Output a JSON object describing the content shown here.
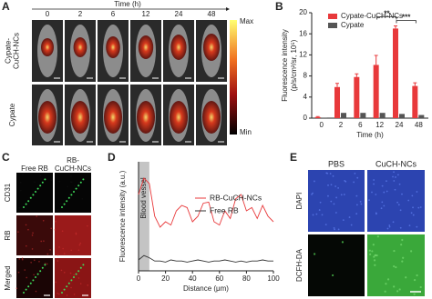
{
  "panel_labels": [
    "A",
    "B",
    "C",
    "D",
    "E"
  ],
  "panel_a": {
    "header": "Time (h)",
    "times": [
      "0",
      "2",
      "6",
      "12",
      "24",
      "48"
    ],
    "rows": [
      [
        "Cypate-",
        "CuCH-NCs"
      ],
      [
        "Cypate"
      ]
    ],
    "colorbar": [
      "Max",
      "Min"
    ]
  },
  "chart_data": [
    {
      "type": "bar",
      "categories": [
        "0",
        "2",
        "6",
        "12",
        "24",
        "48"
      ],
      "x_label": "Time (h)",
      "y_label": [
        "Fluorescence intensity",
        "(p/s/cm²/sr, 10⁵)"
      ],
      "ylim": [
        0,
        20
      ],
      "yticks": [
        0,
        4,
        8,
        12,
        16,
        20
      ],
      "legend": "upper left",
      "series": [
        {
          "name": "Cypate-CuCH-NCs",
          "color": "#e8393b",
          "values": [
            0.2,
            5.9,
            7.8,
            10.1,
            17.0,
            6.1
          ],
          "errors": [
            0.1,
            0.7,
            0.6,
            1.8,
            0.5,
            0.6
          ]
        },
        {
          "name": "Cypate",
          "color": "#555555",
          "values": [
            0.1,
            1.0,
            1.0,
            1.0,
            0.8,
            0.6
          ]
        }
      ],
      "annotations": [
        {
          "text": "**",
          "between": [
            "12",
            "24"
          ]
        },
        {
          "text": "***",
          "between": [
            "24",
            "48"
          ]
        }
      ]
    },
    {
      "type": "line",
      "x_label": "Distance (μm)",
      "y_label": "Fluorescence intensity (a.u.)",
      "x": [
        0,
        4,
        8,
        12,
        16,
        20,
        24,
        28,
        32,
        36,
        40,
        44,
        48,
        52,
        56,
        60,
        64,
        68,
        72,
        76,
        80,
        84,
        88,
        92,
        96,
        100
      ],
      "xlim": [
        0,
        100
      ],
      "xticks": [
        0,
        20,
        40,
        60,
        80,
        100
      ],
      "ylim": [
        0,
        100
      ],
      "legend": "upper right",
      "shade": {
        "label": "Blood vessel",
        "range": [
          0,
          8
        ]
      },
      "series": [
        {
          "name": "RB-CuCH-NCs",
          "color": "#e8393b",
          "values": [
            70,
            85,
            80,
            50,
            40,
            45,
            42,
            55,
            60,
            58,
            45,
            50,
            62,
            63,
            45,
            42,
            55,
            48,
            66,
            70,
            55,
            58,
            48,
            60,
            50,
            45
          ]
        },
        {
          "name": "Free RB",
          "color": "#333333",
          "values": [
            10,
            14,
            12,
            9,
            9,
            8,
            10,
            9,
            9,
            8,
            9,
            10,
            9,
            8,
            9,
            9,
            10,
            9,
            8,
            9,
            8,
            9,
            9,
            10,
            9,
            9
          ]
        }
      ]
    }
  ],
  "panel_c": {
    "columns": [
      [
        "Free RB"
      ],
      [
        "RB-",
        "CuCH-NCs"
      ]
    ],
    "rows": [
      "CD31",
      "RB",
      "Merged"
    ],
    "row_colors": [
      "#2aa84a",
      "#e03030",
      "#222222"
    ]
  },
  "panel_e": {
    "columns": [
      "PBS",
      "CuCH-NCs"
    ],
    "rows": [
      "DAPI",
      "DCFH-DA"
    ]
  }
}
